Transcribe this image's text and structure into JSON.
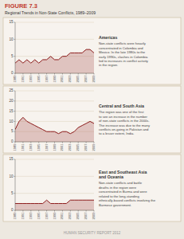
{
  "title": "FIGURE 7.3",
  "subtitle": "Regional Trends in Non-State Conflicts, 1989–2009",
  "annotations": [
    "HUMAN SECURITY REPORT 2012"
  ],
  "chart_data": [
    {
      "type": "area",
      "title": "Americas",
      "annotations": [
        "Non-state conflicts were heavily\nconcentrated in Colombia and\nMexico. In the late 1980s to the\nearly 1990s, clashes in Colombia\nled to increases in conflict activity\nin the region."
      ],
      "x": [
        1989,
        1990,
        1991,
        1992,
        1993,
        1994,
        1995,
        1996,
        1997,
        1998,
        1999,
        2000,
        2001,
        2002,
        2003,
        2004,
        2005,
        2006,
        2007,
        2008,
        2009
      ],
      "values": [
        3,
        4,
        3,
        4,
        3,
        4,
        3,
        4,
        4,
        5,
        4,
        4,
        5,
        5,
        6,
        6,
        6,
        6,
        7,
        7,
        6
      ],
      "color": "#8b1a1a",
      "xlim": [
        1989,
        2009
      ],
      "xticks": [
        1989,
        1991,
        1993,
        1995,
        1997,
        1999,
        2001,
        2003,
        2005,
        2007,
        2009
      ],
      "ylim": [
        0,
        15
      ],
      "yticks": [
        0,
        5,
        10,
        15
      ],
      "grid": true
    },
    {
      "type": "area",
      "title": "Central and South Asia",
      "annotations": [
        "The region was one of the first\nto see an increase in the number\nof non-state conflicts in the 2000s.\nThe increase was due to the many\nconflicts on-going in Pakistan and\nto a lesser extent, India."
      ],
      "x": [
        1989,
        1990,
        1991,
        1992,
        1993,
        1994,
        1995,
        1996,
        1997,
        1998,
        1999,
        2000,
        2001,
        2002,
        2003,
        2004,
        2005,
        2006,
        2007,
        2008,
        2009
      ],
      "values": [
        6,
        10,
        12,
        10,
        9,
        8,
        7,
        6,
        5,
        5,
        5,
        4,
        5,
        5,
        4,
        5,
        7,
        8,
        9,
        10,
        9
      ],
      "color": "#8b1a1a",
      "xlim": [
        1989,
        2009
      ],
      "xticks": [
        1989,
        1991,
        1993,
        1995,
        1997,
        1999,
        2001,
        2003,
        2005,
        2007,
        2009
      ],
      "ylim": [
        0,
        25
      ],
      "yticks": [
        0,
        5,
        10,
        15,
        20,
        25
      ],
      "grid": true
    },
    {
      "type": "area",
      "title": "East and Southeast Asia\nand Oceania",
      "annotations": [
        "Non-state conflicts and battle\ndeaths in the region were\nconcentrated in Burma and were\nrelated to the long-standing\nethnically-based conflicts involving the\nBurmese government."
      ],
      "x": [
        1989,
        1990,
        1991,
        1992,
        1993,
        1994,
        1995,
        1996,
        1997,
        1998,
        1999,
        2000,
        2001,
        2002,
        2003,
        2004,
        2005,
        2006,
        2007,
        2008,
        2009
      ],
      "values": [
        2,
        2,
        2,
        2,
        2,
        2,
        2,
        2,
        3,
        2,
        2,
        2,
        2,
        2,
        3,
        3,
        3,
        3,
        3,
        3,
        3
      ],
      "color": "#8b1a1a",
      "xlim": [
        1989,
        2009
      ],
      "xticks": [
        1989,
        1991,
        1993,
        1995,
        1997,
        1999,
        2001,
        2003,
        2005,
        2007,
        2009
      ],
      "ylim": [
        0,
        15
      ],
      "yticks": [
        0,
        5,
        10,
        15
      ],
      "grid": true
    }
  ]
}
